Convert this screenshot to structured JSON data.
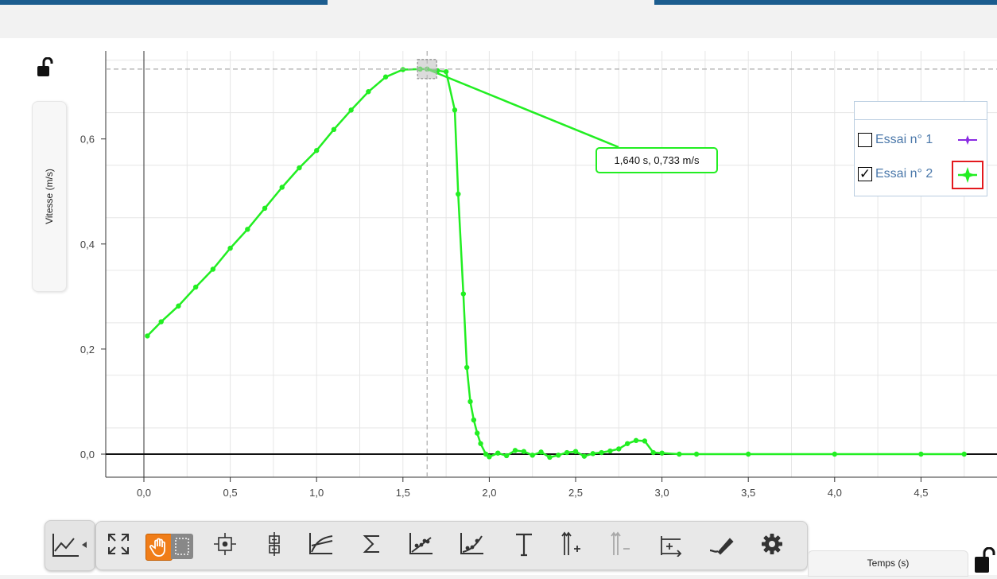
{
  "app": {
    "accent": "#1c5d8f"
  },
  "axes": {
    "ylabel": "Vitesse (m/s)",
    "xlabel": "Temps (s)"
  },
  "legend": {
    "items": [
      {
        "label": "Essai n° 1",
        "checked": false,
        "color": "#8a2be2",
        "symbol": "star-icon"
      },
      {
        "label": "Essai n° 2",
        "checked": true,
        "color": "#22ee22",
        "symbol": "star-icon",
        "highlighted": true
      }
    ]
  },
  "tooltip": {
    "text": "1,640 s, 0,733 m/s"
  },
  "chart_data": {
    "type": "line",
    "xlabel": "Temps (s)",
    "ylabel": "Vitesse (m/s)",
    "xlim": [
      -0.2,
      5.0
    ],
    "ylim": [
      -0.05,
      0.78
    ],
    "x_ticks": [
      0,
      0.5,
      1.0,
      1.5,
      2.0,
      2.5,
      3.0,
      3.5,
      4.0,
      4.5
    ],
    "x_tick_labels": [
      "0,0",
      "0,5",
      "1,0",
      "1,5",
      "2,0",
      "2,5",
      "3,0",
      "3,5",
      "4,0",
      "4,5"
    ],
    "y_ticks": [
      0,
      0.2,
      0.4,
      0.6
    ],
    "y_tick_labels": [
      "0,0",
      "0,2",
      "0,4",
      "0,6"
    ],
    "grid": true,
    "cursor": {
      "x": 1.64,
      "y": 0.733
    },
    "series": [
      {
        "name": "Essai n° 2",
        "color": "#22ee22",
        "x": [
          0.02,
          0.1,
          0.2,
          0.3,
          0.4,
          0.5,
          0.6,
          0.7,
          0.8,
          0.9,
          1.0,
          1.1,
          1.2,
          1.3,
          1.4,
          1.5,
          1.6,
          1.64,
          1.7,
          1.75,
          1.8,
          1.82,
          1.85,
          1.87,
          1.89,
          1.91,
          1.93,
          1.95,
          1.98,
          2.0,
          2.05,
          2.1,
          2.15,
          2.2,
          2.25,
          2.3,
          2.35,
          2.4,
          2.45,
          2.5,
          2.55,
          2.6,
          2.65,
          2.7,
          2.75,
          2.8,
          2.85,
          2.9,
          2.95,
          3.0,
          3.1,
          3.2,
          3.5,
          4.0,
          4.5,
          4.75
        ],
        "y": [
          0.225,
          0.252,
          0.282,
          0.318,
          0.352,
          0.392,
          0.428,
          0.468,
          0.508,
          0.545,
          0.578,
          0.618,
          0.655,
          0.69,
          0.718,
          0.732,
          0.733,
          0.733,
          0.73,
          0.728,
          0.655,
          0.495,
          0.305,
          0.165,
          0.1,
          0.065,
          0.04,
          0.02,
          0.0,
          -0.005,
          0.002,
          -0.003,
          0.007,
          0.005,
          -0.002,
          0.004,
          -0.006,
          -0.002,
          0.003,
          0.005,
          -0.004,
          0.001,
          0.003,
          0.006,
          0.01,
          0.02,
          0.026,
          0.025,
          0.003,
          0.002,
          0.0,
          0.0,
          0.0,
          0.0,
          0.0,
          0.0
        ]
      }
    ]
  },
  "toolbar": {
    "tools": [
      {
        "name": "fit-screen-icon",
        "active": false
      },
      {
        "name": "hand-pan-icon",
        "active": true
      },
      {
        "name": "selection-icon",
        "active": false
      },
      {
        "name": "center-point-icon",
        "active": false
      },
      {
        "name": "align-points-icon",
        "active": false
      },
      {
        "name": "tangent-icon",
        "active": false
      },
      {
        "name": "sigma-icon",
        "active": false
      },
      {
        "name": "linear-fit-icon",
        "active": false
      },
      {
        "name": "curve-fit-icon",
        "active": false
      },
      {
        "name": "text-icon",
        "active": false
      },
      {
        "name": "add-y-axis-icon",
        "active": false
      },
      {
        "name": "remove-y-axis-icon",
        "active": false,
        "disabled": true
      },
      {
        "name": "add-x-axis-icon",
        "active": false
      },
      {
        "name": "pen-icon",
        "active": false
      },
      {
        "name": "gear-icon",
        "active": false
      }
    ]
  }
}
